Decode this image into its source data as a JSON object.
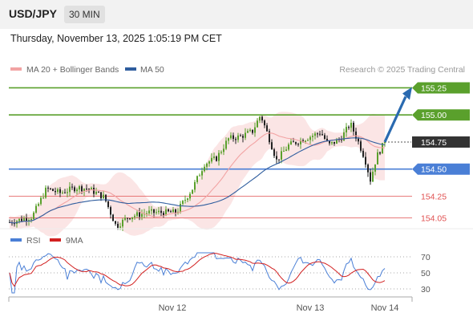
{
  "header": {
    "pair": "USD/JPY",
    "timeframe": "30 MIN",
    "timestamp": "Thursday, November 13, 2025 1:05:19 PM CET"
  },
  "credit": "Research © 2025 Trading Central",
  "colors": {
    "bollinger": "#f2a3a3",
    "ma50": "#2f5d9e",
    "up": "#5aa02c",
    "down": "#222222",
    "green_level": "#5aa02c",
    "blue_level": "#4a7fd6",
    "red_level": "#e05050",
    "rsi": "#4a7fd6",
    "rsi_ma": "#d22020"
  },
  "chart_data": [
    {
      "type": "candlestick",
      "legend": [
        {
          "name": "MA 20 + Bollinger Bands",
          "color": "#f2a3a3"
        },
        {
          "name": "MA 50",
          "color": "#2f5d9e"
        }
      ],
      "x_ticks": [
        "Nov 12",
        "Nov 13",
        "Nov 14"
      ],
      "y_range": [
        153.95,
        155.32
      ],
      "levels": [
        {
          "value": 155.25,
          "label": "155.25",
          "style": "green"
        },
        {
          "value": 155.0,
          "label": "155.00",
          "style": "green"
        },
        {
          "value": 154.75,
          "label": "154.75",
          "style": "current"
        },
        {
          "value": 154.5,
          "label": "154.50",
          "style": "blue"
        },
        {
          "value": 154.25,
          "label": "154.25",
          "style": "red"
        },
        {
          "value": 154.05,
          "label": "154.05",
          "style": "red"
        }
      ],
      "scenario_arrow": {
        "from": 154.75,
        "to": 155.25
      },
      "last_price": 154.75
    },
    {
      "type": "line",
      "legend": [
        {
          "name": "RSI",
          "color": "#4a7fd6"
        },
        {
          "name": "9MA",
          "color": "#d22020"
        }
      ],
      "y_ticks": [
        "70",
        "50",
        "30"
      ],
      "y_range": [
        20,
        80
      ]
    }
  ]
}
